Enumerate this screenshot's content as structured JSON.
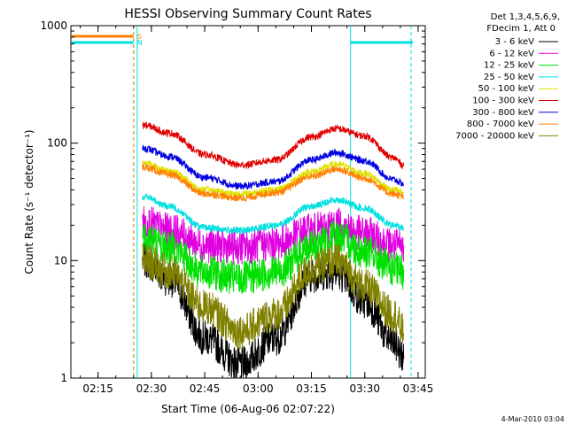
{
  "chart_data": {
    "type": "line",
    "title": "HESSI Observing Summary Count Rates",
    "xlabel": "Start Time (06-Aug-06 02:07:22)",
    "ylabel": "Count Rate (s⁻¹ detector⁻¹)",
    "yscale": "log",
    "ylim": [
      1,
      1000
    ],
    "xlim": [
      "02:07:22",
      "03:47:00"
    ],
    "xticks": [
      "02:15",
      "02:30",
      "02:45",
      "03:00",
      "03:15",
      "03:30",
      "03:45"
    ],
    "yticks": [
      "1",
      "10",
      "100",
      "1000"
    ],
    "x": [
      "02:28",
      "02:35",
      "02:45",
      "02:55",
      "03:05",
      "03:15",
      "03:22",
      "03:30",
      "03:38",
      "03:41"
    ],
    "series": [
      {
        "name": "3 - 6 keV",
        "color": "#000000",
        "values": [
          10,
          7,
          2.2,
          1.3,
          2.2,
          7.5,
          8,
          4.5,
          2,
          1.5
        ]
      },
      {
        "name": "6 - 12 keV",
        "color": "#e000e0",
        "values": [
          21,
          18,
          13.5,
          13,
          14,
          18,
          20,
          17,
          13.5,
          13
        ]
      },
      {
        "name": "12 - 25 keV",
        "color": "#00e000",
        "values": [
          16,
          13,
          8,
          7,
          8,
          13,
          16,
          12,
          8.5,
          8
        ]
      },
      {
        "name": "25 - 50 keV",
        "color": "#00e0e0",
        "values": [
          35,
          29,
          19,
          18,
          20,
          29,
          33,
          28,
          20,
          19
        ]
      },
      {
        "name": "50 - 100 keV",
        "color": "#e0e000",
        "values": [
          68,
          58,
          40,
          37,
          40,
          57,
          66,
          55,
          40,
          38
        ]
      },
      {
        "name": "100 - 300 keV",
        "color": "#e00000",
        "values": [
          142,
          122,
          80,
          65,
          72,
          113,
          133,
          115,
          75,
          65
        ]
      },
      {
        "name": "300 - 800 keV",
        "color": "#0000e0",
        "values": [
          90,
          77,
          51,
          43,
          47,
          72,
          83,
          71,
          49,
          45
        ]
      },
      {
        "name": "800 - 7000 keV",
        "color": "#ff8000",
        "values": [
          62,
          54,
          37,
          34,
          38,
          52,
          60,
          50,
          37,
          35
        ]
      },
      {
        "name": "7000 - 20000 keV",
        "color": "#808000",
        "values": [
          10,
          8,
          4,
          2.5,
          3.5,
          8.5,
          10,
          6,
          3.5,
          2.5
        ]
      }
    ],
    "legend": {
      "header_line1": "Det 1,3,4,5,6,9,",
      "header_line2": "FDecim 1, Att 0",
      "position": "right"
    },
    "flags": [
      {
        "label": "S",
        "color": "#ff8000"
      },
      {
        "label": "N",
        "color": "#00e0e0"
      }
    ],
    "footer": "4-Mar-2010 03:04"
  }
}
